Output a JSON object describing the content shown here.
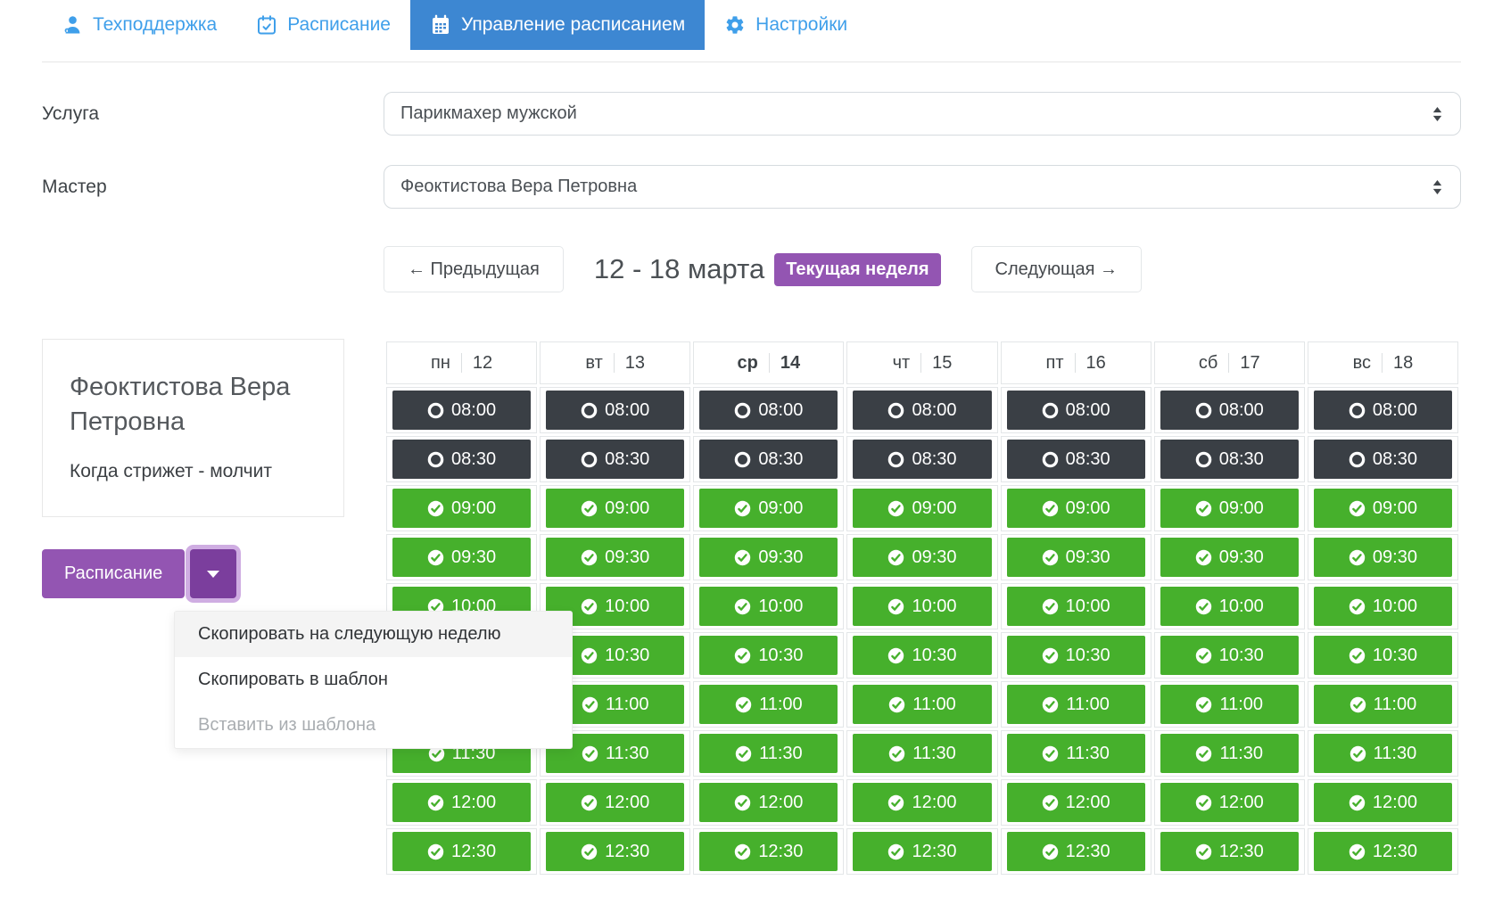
{
  "tabs": [
    {
      "label": "Техподдержка",
      "icon": "support-user-icon",
      "active": false
    },
    {
      "label": "Расписание",
      "icon": "calendar-check-icon",
      "active": false
    },
    {
      "label": "Управление расписанием",
      "icon": "calendar-grid-icon",
      "active": true
    },
    {
      "label": "Настройки",
      "icon": "gear-icon",
      "active": false
    }
  ],
  "form": {
    "service_label": "Услуга",
    "service_value": "Парикмахер мужской",
    "master_label": "Мастер",
    "master_value": "Феоктистова Вера Петровна"
  },
  "week_nav": {
    "prev_label": "← Предыдущая",
    "title": "12 - 18 марта",
    "badge": "Текущая неделя",
    "next_label": "Следующая →"
  },
  "master_card": {
    "name": "Феоктистова Вера Петровна",
    "note": "Когда стрижет - молчит"
  },
  "schedule_menu": {
    "button_label": "Расписание",
    "items": [
      {
        "label": "Скопировать на следующую неделю",
        "state": "hover"
      },
      {
        "label": "Скопировать в шаблон",
        "state": "normal"
      },
      {
        "label": "Вставить из шаблона",
        "state": "disabled"
      }
    ]
  },
  "schedule": {
    "days": [
      {
        "name": "пн",
        "date": "12",
        "current": false
      },
      {
        "name": "вт",
        "date": "13",
        "current": false
      },
      {
        "name": "ср",
        "date": "14",
        "current": true
      },
      {
        "name": "чт",
        "date": "15",
        "current": false
      },
      {
        "name": "пт",
        "date": "16",
        "current": false
      },
      {
        "name": "сб",
        "date": "17",
        "current": false
      },
      {
        "name": "вс",
        "date": "18",
        "current": false
      }
    ],
    "slots": [
      {
        "time": "08:00",
        "status": "off"
      },
      {
        "time": "08:30",
        "status": "off"
      },
      {
        "time": "09:00",
        "status": "on"
      },
      {
        "time": "09:30",
        "status": "on"
      },
      {
        "time": "10:00",
        "status": "on"
      },
      {
        "time": "10:30",
        "status": "on"
      },
      {
        "time": "11:00",
        "status": "on"
      },
      {
        "time": "11:30",
        "status": "on"
      },
      {
        "time": "12:00",
        "status": "on"
      },
      {
        "time": "12:30",
        "status": "on"
      }
    ]
  },
  "colors": {
    "active_tab_blue": "#3d87d2",
    "link_blue": "#3f9fea",
    "purple": "#9355b2",
    "dark_purple": "#7b3e9d",
    "slot_green": "#46b02c",
    "slot_dark": "#3a3f45"
  }
}
